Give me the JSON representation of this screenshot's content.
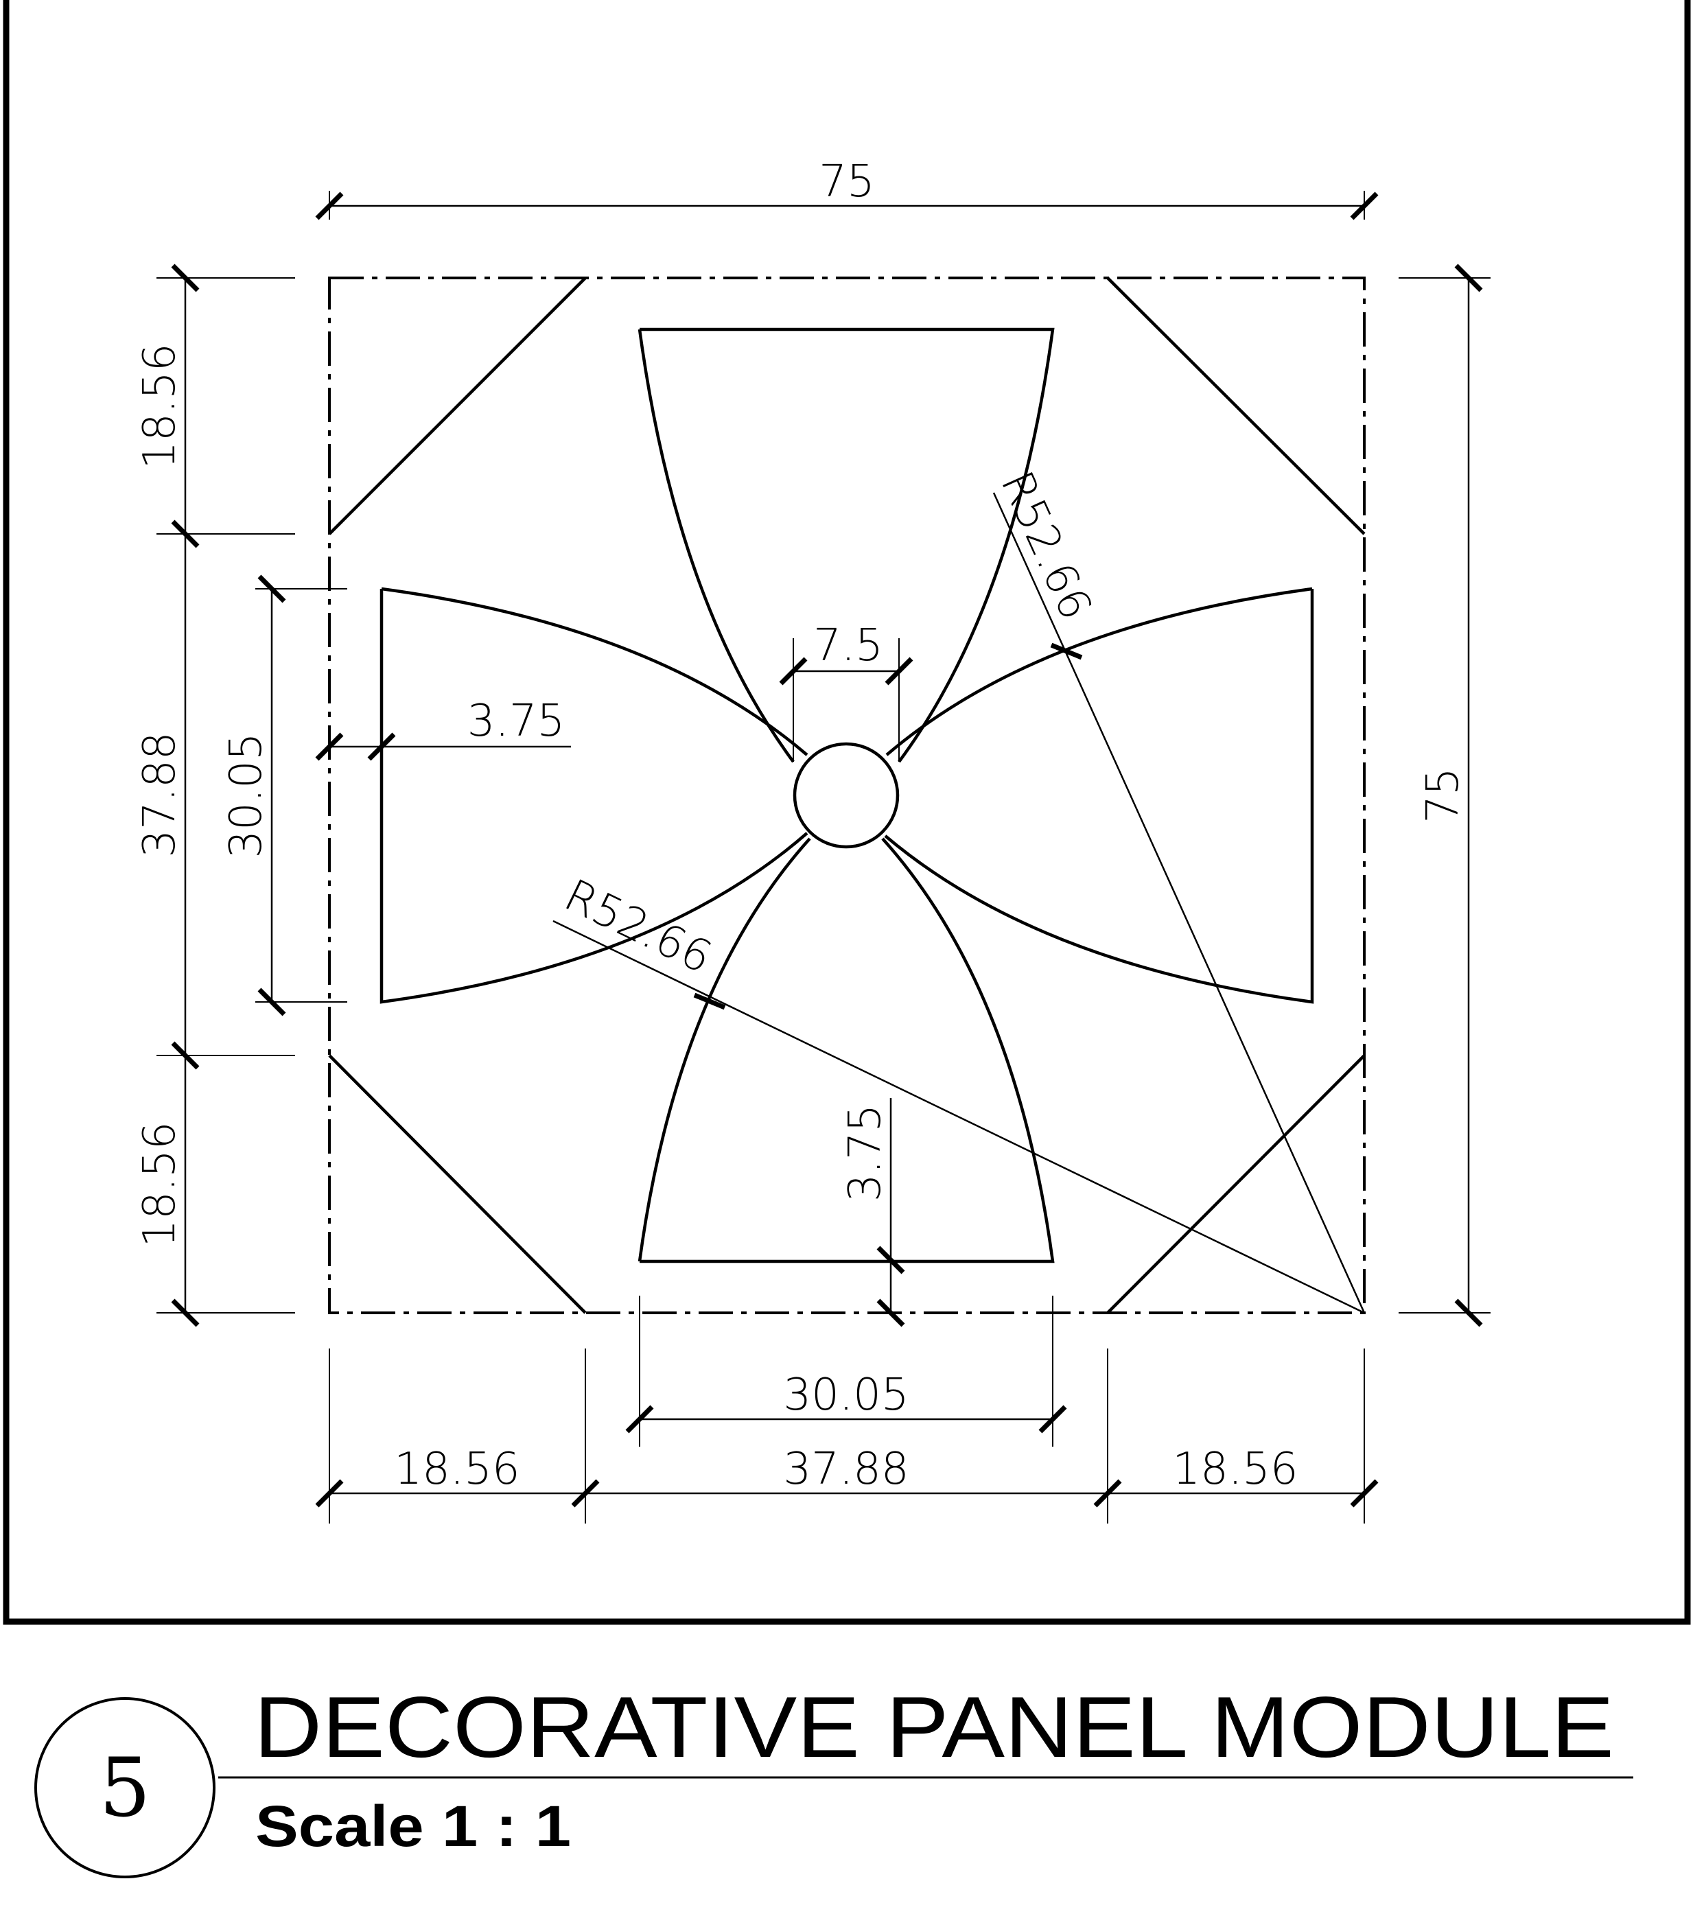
{
  "drawing": {
    "dimensions": {
      "top_width": "75",
      "right_height": "75",
      "left_top": "18.56",
      "left_middle": "37.88",
      "left_bottom": "18.56",
      "left_inner": "30.05",
      "bottom_left": "18.56",
      "bottom_middle": "37.88",
      "bottom_right": "18.56",
      "bottom_inner": "30.05",
      "center_gap": "7.5",
      "left_offset": "3.75",
      "bottom_offset": "3.75",
      "radius_upper": "R52.66",
      "radius_lower": "R52.66"
    }
  },
  "title_block": {
    "number": "5",
    "title": "DECORATIVE PANEL MODULE",
    "scale": "Scale 1 : 1"
  }
}
